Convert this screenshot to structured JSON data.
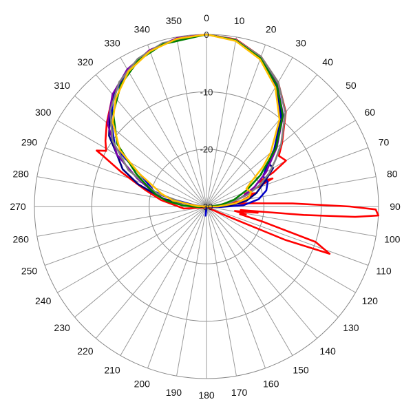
{
  "chart_data": {
    "type": "line",
    "polar": true,
    "direction": "clockwise",
    "zero_at": "top",
    "r_ticks": [
      0,
      -10,
      -20,
      -30
    ],
    "r_range": [
      -30,
      0
    ],
    "theta_ticks": [
      "0",
      "10",
      "20",
      "30",
      "40",
      "50",
      "60",
      "70",
      "80",
      "90",
      "100",
      "110",
      "120",
      "130",
      "140",
      "150",
      "160",
      "170",
      "180",
      "190",
      "200",
      "210",
      "220",
      "230",
      "240",
      "250",
      "260",
      "270",
      "280",
      "290",
      "300",
      "310",
      "320",
      "330",
      "340",
      "350"
    ],
    "grid": true,
    "series": [
      {
        "color": "#ff0000",
        "points": [
          [
            0,
            0
          ],
          [
            10,
            -0.4
          ],
          [
            20,
            -2.2
          ],
          [
            30,
            -5
          ],
          [
            40,
            -8.5
          ],
          [
            50,
            -12.8
          ],
          [
            55,
            -14.6
          ],
          [
            60,
            -14
          ],
          [
            63,
            -17
          ],
          [
            65,
            -20
          ],
          [
            67,
            -17.5
          ],
          [
            70,
            -21
          ],
          [
            72,
            -23
          ],
          [
            75,
            -21
          ],
          [
            78,
            -23
          ],
          [
            81,
            -24
          ],
          [
            83,
            -26
          ],
          [
            86,
            -22
          ],
          [
            88,
            -15
          ],
          [
            90,
            -5
          ],
          [
            91,
            -0.5
          ],
          [
            93,
            0
          ],
          [
            94,
            -4
          ],
          [
            95,
            -13
          ],
          [
            96,
            -24
          ],
          [
            97,
            -21
          ],
          [
            99,
            -25
          ],
          [
            101,
            -23
          ],
          [
            103,
            -24
          ],
          [
            105,
            -20
          ],
          [
            108,
            -10
          ],
          [
            111,
            -7
          ],
          [
            113,
            -15
          ],
          [
            115,
            -26
          ],
          [
            120,
            -29
          ],
          [
            200,
            -30
          ],
          [
            250,
            -29.5
          ],
          [
            265,
            -26
          ],
          [
            278,
            -22
          ],
          [
            285,
            -19
          ],
          [
            292,
            -14
          ],
          [
            296,
            -10
          ],
          [
            297,
            -8.5
          ],
          [
            299,
            -10
          ],
          [
            303,
            -9
          ],
          [
            310,
            -7.3
          ],
          [
            320,
            -4.6
          ],
          [
            330,
            -2.4
          ],
          [
            340,
            -1
          ],
          [
            350,
            -0.2
          ],
          [
            360,
            0
          ]
        ]
      },
      {
        "color": "#0000c8",
        "points": [
          [
            0,
            0
          ],
          [
            10,
            -0.6
          ],
          [
            20,
            -2.6
          ],
          [
            30,
            -5.8
          ],
          [
            40,
            -9.8
          ],
          [
            50,
            -14.6
          ],
          [
            55,
            -17
          ],
          [
            62,
            -18.8
          ],
          [
            68,
            -18.5
          ],
          [
            75,
            -19.2
          ],
          [
            82,
            -20.8
          ],
          [
            88,
            -23.5
          ],
          [
            92,
            -27.5
          ],
          [
            100,
            -29.6
          ],
          [
            150,
            -30
          ],
          [
            180,
            -29.5
          ],
          [
            186,
            -28.4
          ],
          [
            192,
            -29.8
          ],
          [
            260,
            -30
          ],
          [
            272,
            -28.5
          ],
          [
            282,
            -24
          ],
          [
            286,
            -20.5
          ],
          [
            290,
            -19.5
          ],
          [
            296,
            -17
          ],
          [
            303,
            -11
          ],
          [
            312,
            -7.6
          ],
          [
            320,
            -4.8
          ],
          [
            330,
            -2.5
          ],
          [
            340,
            -1.1
          ],
          [
            350,
            -0.3
          ],
          [
            360,
            0
          ]
        ]
      },
      {
        "color": "#000080",
        "points": [
          [
            0,
            0
          ],
          [
            10,
            -0.5
          ],
          [
            20,
            -2.4
          ],
          [
            30,
            -5.6
          ],
          [
            40,
            -9.5
          ],
          [
            50,
            -14.4
          ],
          [
            55,
            -16.8
          ],
          [
            60,
            -16.6
          ],
          [
            67,
            -19
          ],
          [
            75,
            -21
          ],
          [
            82,
            -23
          ],
          [
            88,
            -26
          ],
          [
            95,
            -29.5
          ],
          [
            150,
            -30
          ],
          [
            265,
            -30
          ],
          [
            272,
            -28
          ],
          [
            280,
            -22.5
          ],
          [
            284,
            -20.5
          ],
          [
            288,
            -17.5
          ],
          [
            294,
            -14
          ],
          [
            300,
            -12
          ],
          [
            306,
            -9
          ],
          [
            314,
            -6.6
          ],
          [
            322,
            -4.3
          ],
          [
            330,
            -2.4
          ],
          [
            340,
            -1.1
          ],
          [
            350,
            -0.3
          ],
          [
            360,
            0
          ]
        ]
      },
      {
        "color": "#7a00aa",
        "points": [
          [
            0,
            0
          ],
          [
            10,
            -0.5
          ],
          [
            20,
            -2.3
          ],
          [
            30,
            -5.4
          ],
          [
            40,
            -9.2
          ],
          [
            50,
            -14
          ],
          [
            60,
            -18
          ],
          [
            68,
            -21
          ],
          [
            75,
            -23.5
          ],
          [
            82,
            -26
          ],
          [
            90,
            -28.5
          ],
          [
            100,
            -30
          ],
          [
            260,
            -30
          ],
          [
            270,
            -29
          ],
          [
            278,
            -26
          ],
          [
            285,
            -20.5
          ],
          [
            292,
            -17
          ],
          [
            300,
            -12
          ],
          [
            310,
            -7.5
          ],
          [
            320,
            -4.5
          ],
          [
            330,
            -2.4
          ],
          [
            340,
            -1
          ],
          [
            350,
            -0.2
          ],
          [
            360,
            0
          ]
        ]
      },
      {
        "color": "#808080",
        "points": [
          [
            0,
            0
          ],
          [
            10,
            -0.5
          ],
          [
            20,
            -2.2
          ],
          [
            30,
            -5
          ],
          [
            40,
            -8.6
          ],
          [
            50,
            -13
          ],
          [
            56,
            -15.5
          ],
          [
            62,
            -17.6
          ],
          [
            68,
            -20
          ],
          [
            74,
            -22.5
          ],
          [
            80,
            -25.5
          ],
          [
            88,
            -28.8
          ],
          [
            95,
            -30
          ],
          [
            265,
            -30
          ],
          [
            275,
            -27
          ],
          [
            285,
            -21
          ],
          [
            295,
            -15
          ],
          [
            305,
            -10
          ],
          [
            315,
            -6.3
          ],
          [
            325,
            -3.5
          ],
          [
            335,
            -1.6
          ],
          [
            345,
            -0.5
          ],
          [
            360,
            0
          ]
        ]
      },
      {
        "color": "#008000",
        "points": [
          [
            0,
            0
          ],
          [
            10,
            -0.6
          ],
          [
            20,
            -2.5
          ],
          [
            30,
            -5.5
          ],
          [
            40,
            -9.3
          ],
          [
            50,
            -14.2
          ],
          [
            60,
            -19.2
          ],
          [
            68,
            -22.5
          ],
          [
            76,
            -25
          ],
          [
            84,
            -27.5
          ],
          [
            92,
            -29.5
          ],
          [
            100,
            -30
          ],
          [
            260,
            -30
          ],
          [
            266,
            -28.6
          ],
          [
            272,
            -26
          ],
          [
            278,
            -23
          ],
          [
            283,
            -21
          ],
          [
            288,
            -19.4
          ],
          [
            295,
            -16.5
          ],
          [
            305,
            -11
          ],
          [
            315,
            -7
          ],
          [
            325,
            -4
          ],
          [
            335,
            -1.9
          ],
          [
            345,
            -0.7
          ],
          [
            360,
            0
          ]
        ]
      },
      {
        "color": "#ffc000",
        "points": [
          [
            0,
            0
          ],
          [
            10,
            -0.7
          ],
          [
            20,
            -2.7
          ],
          [
            30,
            -6
          ],
          [
            40,
            -10.2
          ],
          [
            50,
            -15.4
          ],
          [
            55,
            -18
          ],
          [
            62,
            -21.4
          ],
          [
            66,
            -22.4
          ],
          [
            72,
            -21.8
          ],
          [
            78,
            -22.5
          ],
          [
            84,
            -25
          ],
          [
            90,
            -28
          ],
          [
            96,
            -30
          ],
          [
            265,
            -30
          ],
          [
            272,
            -28.5
          ],
          [
            280,
            -24
          ],
          [
            286,
            -21.8
          ],
          [
            291,
            -20
          ],
          [
            296,
            -17
          ],
          [
            303,
            -12
          ],
          [
            312,
            -8
          ],
          [
            320,
            -5.4
          ],
          [
            330,
            -2.8
          ],
          [
            340,
            -1.2
          ],
          [
            350,
            -0.3
          ],
          [
            360,
            0
          ]
        ]
      }
    ]
  }
}
